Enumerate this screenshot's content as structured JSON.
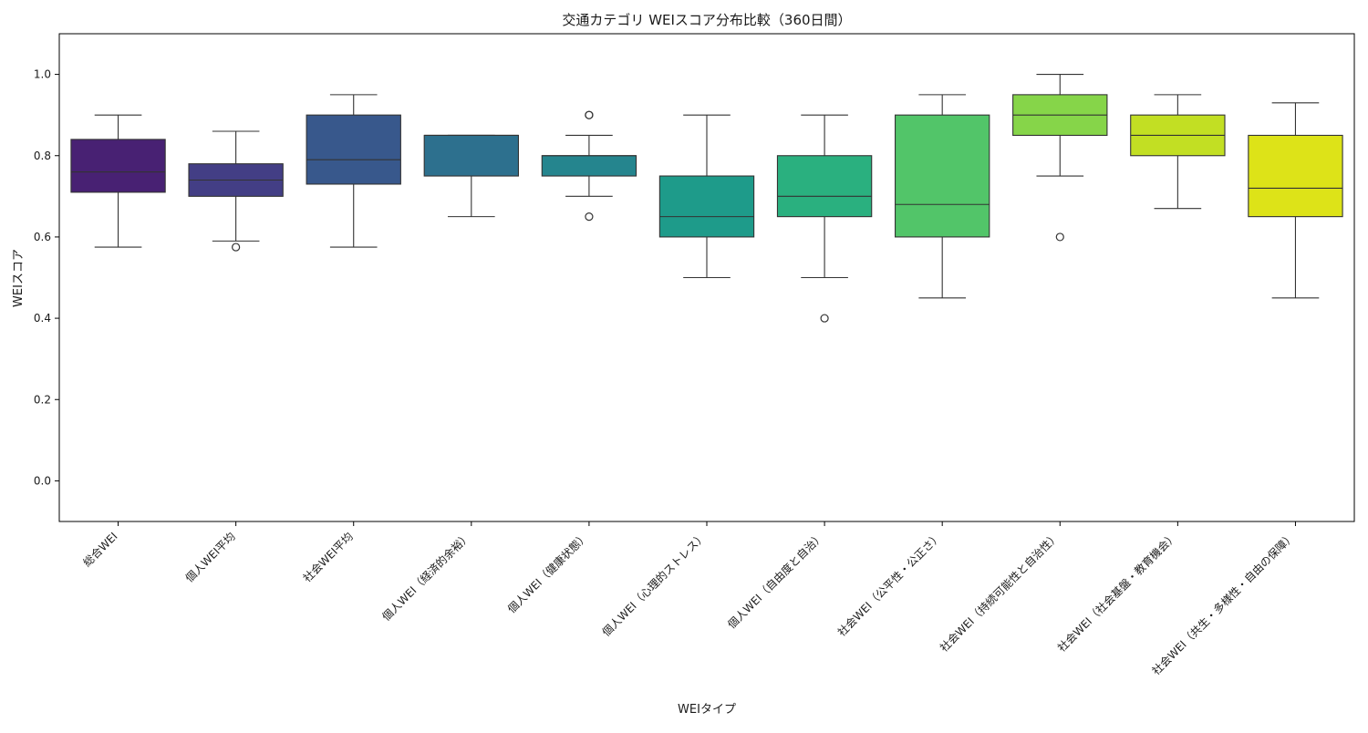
{
  "chart_data": {
    "type": "box",
    "title": "交通カテゴリ WEIスコア分布比較（360日間）",
    "xlabel": "WEIタイプ",
    "ylabel": "WEIスコア",
    "ylim": [
      -0.1,
      1.1
    ],
    "yticks": [
      0.0,
      0.2,
      0.4,
      0.6,
      0.8,
      1.0
    ],
    "ytick_labels": [
      "0.0",
      "0.2",
      "0.4",
      "0.6",
      "0.8",
      "1.0"
    ],
    "grid": false,
    "legend": "none",
    "categories": [
      "総合WEI",
      "個人WEI平均",
      "社会WEI平均",
      "個人WEI（経済的余裕）",
      "個人WEI（健康状態）",
      "個人WEI（心理的ストレス）",
      "個人WEI（自由度と自治）",
      "社会WEI（公平性・公正さ）",
      "社会WEI（持続可能性と自治性）",
      "社会WEI（社会基盤・教育機会）",
      "社会WEI（共生・多様性・自由の保障）"
    ],
    "boxes": [
      {
        "whisker_low": 0.575,
        "q1": 0.71,
        "median": 0.76,
        "q3": 0.84,
        "whisker_high": 0.9,
        "outliers": [],
        "color": "#482173"
      },
      {
        "whisker_low": 0.59,
        "q1": 0.7,
        "median": 0.74,
        "q3": 0.78,
        "whisker_high": 0.86,
        "outliers": [
          0.575
        ],
        "color": "#433e85"
      },
      {
        "whisker_low": 0.575,
        "q1": 0.73,
        "median": 0.79,
        "q3": 0.9,
        "whisker_high": 0.95,
        "outliers": [],
        "color": "#38588c"
      },
      {
        "whisker_low": 0.65,
        "q1": 0.75,
        "median": 0.85,
        "q3": 0.85,
        "whisker_high": 0.85,
        "outliers": [],
        "color": "#2d708e"
      },
      {
        "whisker_low": 0.7,
        "q1": 0.75,
        "median": 0.8,
        "q3": 0.8,
        "whisker_high": 0.85,
        "outliers": [
          0.65,
          0.9,
          0.9
        ],
        "color": "#25858e"
      },
      {
        "whisker_low": 0.5,
        "q1": 0.6,
        "median": 0.65,
        "q3": 0.75,
        "whisker_high": 0.9,
        "outliers": [],
        "color": "#1e9b8a"
      },
      {
        "whisker_low": 0.5,
        "q1": 0.65,
        "median": 0.7,
        "q3": 0.8,
        "whisker_high": 0.9,
        "outliers": [
          0.4
        ],
        "color": "#2ab07f"
      },
      {
        "whisker_low": 0.45,
        "q1": 0.6,
        "median": 0.68,
        "q3": 0.9,
        "whisker_high": 0.95,
        "outliers": [],
        "color": "#52c569"
      },
      {
        "whisker_low": 0.75,
        "q1": 0.85,
        "median": 0.9,
        "q3": 0.95,
        "whisker_high": 1.0,
        "outliers": [
          0.6
        ],
        "color": "#86d549"
      },
      {
        "whisker_low": 0.67,
        "q1": 0.8,
        "median": 0.85,
        "q3": 0.9,
        "whisker_high": 0.95,
        "outliers": [],
        "color": "#c2df23"
      },
      {
        "whisker_low": 0.45,
        "q1": 0.65,
        "median": 0.72,
        "q3": 0.85,
        "whisker_high": 0.93,
        "outliers": [],
        "color": "#dde318"
      }
    ]
  }
}
